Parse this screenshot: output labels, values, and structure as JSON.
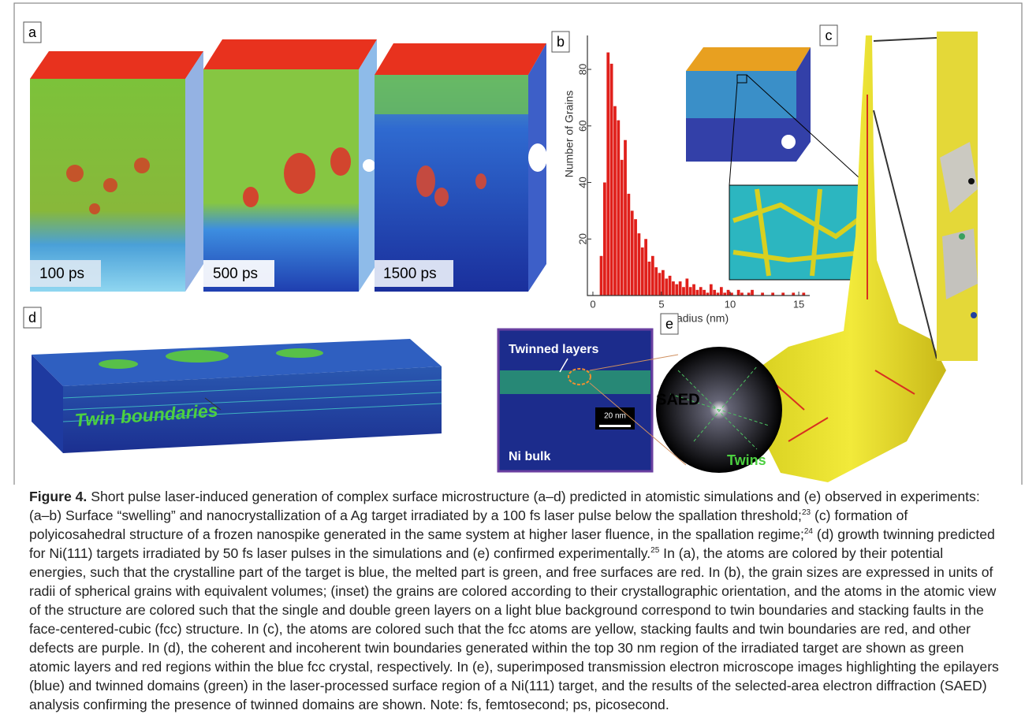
{
  "panels": {
    "a": {
      "label": "a",
      "times": [
        "100 ps",
        "500 ps",
        "1500 ps"
      ]
    },
    "b": {
      "label": "b",
      "chart": {
        "type": "histogram",
        "xlabel": "Radius (nm)",
        "ylabel": "Number of Grains",
        "color": "#e0201b",
        "bins": [
          0.5,
          0.75,
          1.0,
          1.25,
          1.5,
          1.75,
          2.0,
          2.25,
          2.5,
          2.75,
          3.0,
          3.25,
          3.5,
          3.75,
          4.0,
          4.25,
          4.5,
          4.75,
          5.0,
          5.25,
          5.5,
          5.75,
          6.0,
          6.25,
          6.5,
          6.75,
          7.0,
          7.25,
          7.5,
          7.75,
          8.0,
          8.25,
          8.5,
          8.75,
          9.0,
          9.25,
          9.5,
          9.75,
          10.0,
          10.25,
          10.5,
          10.75,
          11.0,
          11.25,
          11.5,
          11.75,
          12.0,
          12.25,
          12.5,
          12.75,
          13.0,
          13.25,
          13.5,
          13.75,
          14.0,
          14.25,
          14.5,
          14.75,
          15.0,
          15.25,
          15.5
        ],
        "values": [
          14,
          40,
          86,
          82,
          67,
          62,
          48,
          55,
          36,
          30,
          27,
          22,
          17,
          20,
          12,
          14,
          10,
          8,
          9,
          6,
          7,
          5,
          4,
          5,
          3,
          6,
          3,
          4,
          2,
          3,
          2,
          1,
          4,
          2,
          1,
          3,
          1,
          2,
          1,
          0,
          2,
          1,
          0,
          1,
          2,
          0,
          0,
          1,
          0,
          0,
          1,
          0,
          0,
          1,
          0,
          0,
          1,
          0,
          0,
          1
        ],
        "xlim": [
          -0.4,
          15.8
        ],
        "ylim": [
          0,
          92
        ],
        "xticks": [
          0,
          5,
          10,
          15
        ],
        "yticks": [
          20,
          40,
          60,
          80
        ]
      }
    },
    "c": {
      "label": "c"
    },
    "d": {
      "label": "d",
      "annotation": "Twin boundaries"
    },
    "e": {
      "label": "e",
      "twinned": "Twinned layers",
      "bulk": "Ni bulk",
      "scale": "20 nm",
      "saed": "SAED",
      "twins": "Twins"
    }
  },
  "caption": {
    "label": "Figure 4.",
    "parts": [
      " Short pulse laser-induced generation of complex surface microstructure (a–d) predicted in atomistic simulations and (e) observed in experiments: (a–b) Surface “swelling” and nanocrystallization of a Ag target irradiated by a 100 fs laser pulse below the spallation threshold;",
      "23",
      " (c) formation of polyicosahedral structure of a frozen nanospike generated in the same system at higher laser fluence, in the spallation regime;",
      "24",
      " (d) growth twinning predicted for Ni(111) targets irradiated by 50 fs laser pulses in the simulations and (e) confirmed experimentally.",
      "25",
      " In (a), the atoms are colored by their potential energies, such that the crystalline part of the target is blue, the melted part is green, and free surfaces are red. In (b), the grain sizes are expressed in units of radii of spherical grains with equivalent volumes; (inset) the grains are colored according to their crystallographic orientation, and the atoms in the atomic view of the structure are colored such that the single and double green layers on a light blue background correspond to twin boundaries and stacking faults in the face-centered-cubic (fcc) structure. In (c), the atoms are colored such that the fcc atoms are yellow, stacking faults and twin boundaries are red, and other defects are purple. In (d), the coherent and incoherent twin boundaries generated within the top 30 nm region of the irradiated target are shown as green atomic layers and red regions within the blue fcc crystal, respectively. In (e), superimposed transmission electron microscope images highlighting the epilayers (blue) and twinned domains (green) in the laser-processed surface region of a Ni(111) target, and the results of the selected-area electron diffraction (SAED) analysis confirming the presence of twinned domains are shown. Note: fs, femtosecond; ps, picosecond."
    ]
  }
}
